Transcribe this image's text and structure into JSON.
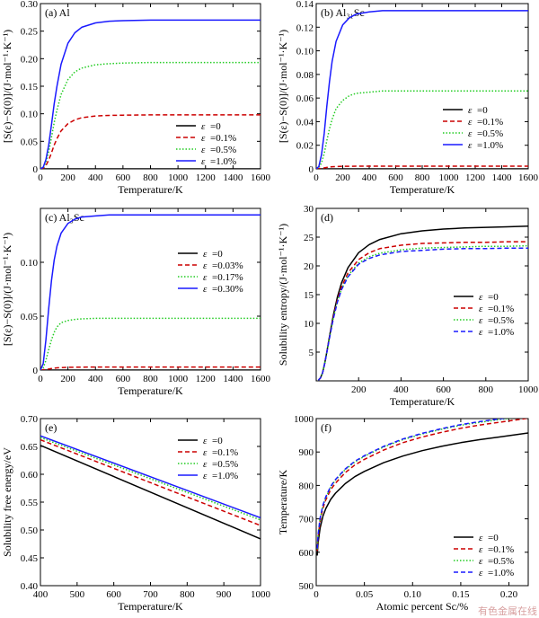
{
  "figure": {
    "watermark": "有色金属在线"
  },
  "legend_prefix": "ε",
  "chart_data": [
    {
      "id": "a",
      "type": "line",
      "panel_label": "(a) Al",
      "xlabel": "Temperature/K",
      "ylabel": "[S(ε)−S(0)]/(J·mol⁻¹·K⁻¹)",
      "xlim": [
        0,
        1600
      ],
      "ylim": [
        0,
        0.3
      ],
      "xticks": [
        0,
        200,
        400,
        600,
        800,
        1000,
        1200,
        1400,
        1600
      ],
      "yticks": [
        0,
        0.05,
        0.1,
        0.15,
        0.2,
        0.25,
        0.3
      ],
      "ytick_labels": [
        "0",
        "0.05",
        "0.10",
        "0.15",
        "0.20",
        "0.25",
        "0.30"
      ],
      "legend_position": "lower-right",
      "series": [
        {
          "name": "=0",
          "color": "#000000",
          "dash": "solid",
          "x": [
            0,
            1600
          ],
          "y": [
            0,
            0
          ]
        },
        {
          "name": "=0.1%",
          "color": "#cc0000",
          "dash": "dashed",
          "x": [
            0,
            20,
            40,
            60,
            80,
            100,
            120,
            150,
            200,
            250,
            300,
            400,
            500,
            600,
            800,
            1000,
            1200,
            1400,
            1600
          ],
          "y": [
            0,
            0.001,
            0.006,
            0.016,
            0.029,
            0.043,
            0.055,
            0.069,
            0.082,
            0.089,
            0.093,
            0.096,
            0.097,
            0.0975,
            0.098,
            0.098,
            0.098,
            0.098,
            0.098
          ]
        },
        {
          "name": "=0.5%",
          "color": "#22cc22",
          "dash": "dotted",
          "x": [
            0,
            20,
            40,
            60,
            80,
            100,
            120,
            150,
            200,
            250,
            300,
            400,
            500,
            600,
            800,
            1000,
            1200,
            1400,
            1600
          ],
          "y": [
            0,
            0.002,
            0.012,
            0.031,
            0.057,
            0.084,
            0.107,
            0.135,
            0.162,
            0.176,
            0.183,
            0.189,
            0.191,
            0.192,
            0.193,
            0.193,
            0.193,
            0.193,
            0.193
          ]
        },
        {
          "name": "=1.0%",
          "color": "#1a1aff",
          "dash": "solid",
          "x": [
            0,
            20,
            40,
            60,
            80,
            100,
            120,
            150,
            200,
            250,
            300,
            400,
            500,
            600,
            800,
            1000,
            1200,
            1400,
            1600
          ],
          "y": [
            0,
            0.003,
            0.017,
            0.043,
            0.08,
            0.118,
            0.15,
            0.19,
            0.228,
            0.247,
            0.257,
            0.265,
            0.268,
            0.269,
            0.27,
            0.27,
            0.27,
            0.27,
            0.27
          ]
        }
      ]
    },
    {
      "id": "b",
      "type": "line",
      "panel_label": "(b) Al₃₁Sc",
      "xlabel": "Temperature/K",
      "ylabel": "[S(ε)−S(0)]/(J·mol⁻¹·K⁻¹)",
      "xlim": [
        0,
        1600
      ],
      "ylim": [
        0,
        0.14
      ],
      "xticks": [
        0,
        200,
        400,
        600,
        800,
        1000,
        1200,
        1400,
        1600
      ],
      "yticks": [
        0,
        0.02,
        0.04,
        0.06,
        0.08,
        0.1,
        0.12,
        0.14
      ],
      "ytick_labels": [
        "0",
        "0.02",
        "0.04",
        "0.06",
        "0.08",
        "0.10",
        "0.12",
        "0.14"
      ],
      "legend_position": "lower-right",
      "series": [
        {
          "name": "=0",
          "color": "#000000",
          "dash": "solid",
          "x": [
            0,
            1600
          ],
          "y": [
            0,
            0
          ]
        },
        {
          "name": "=0.1%",
          "color": "#cc0000",
          "dash": "dashed",
          "x": [
            0,
            40,
            80,
            120,
            200,
            400,
            800,
            1600
          ],
          "y": [
            0,
            0.0004,
            0.0012,
            0.0018,
            0.0022,
            0.0023,
            0.0023,
            0.0023
          ]
        },
        {
          "name": "=0.5%",
          "color": "#22cc22",
          "dash": "dotted",
          "x": [
            0,
            20,
            40,
            60,
            80,
            100,
            120,
            150,
            200,
            250,
            300,
            400,
            500,
            600,
            800,
            1000,
            1200,
            1400,
            1600
          ],
          "y": [
            0,
            0.001,
            0.005,
            0.013,
            0.024,
            0.034,
            0.042,
            0.051,
            0.058,
            0.062,
            0.064,
            0.065,
            0.066,
            0.066,
            0.066,
            0.066,
            0.066,
            0.066,
            0.066
          ]
        },
        {
          "name": "=1.0%",
          "color": "#1a1aff",
          "dash": "solid",
          "x": [
            0,
            20,
            40,
            60,
            80,
            100,
            120,
            150,
            200,
            250,
            300,
            400,
            500,
            600,
            800,
            1000,
            1200,
            1400,
            1600
          ],
          "y": [
            0,
            0.002,
            0.012,
            0.03,
            0.053,
            0.074,
            0.091,
            0.108,
            0.122,
            0.128,
            0.131,
            0.133,
            0.134,
            0.134,
            0.134,
            0.134,
            0.134,
            0.134,
            0.134
          ]
        }
      ]
    },
    {
      "id": "c",
      "type": "line",
      "panel_label": "(c) Al₃Sc",
      "xlabel": "Temperature/K",
      "ylabel": "[S(ε)−S(0)]/(J·mol⁻¹·K⁻¹)",
      "xlim": [
        0,
        1600
      ],
      "ylim": [
        0,
        0.15
      ],
      "xticks": [
        0,
        200,
        400,
        600,
        800,
        1000,
        1200,
        1400,
        1600
      ],
      "yticks": [
        0,
        0.05,
        0.1
      ],
      "ytick_labels": [
        "0",
        "0.05",
        "0.10"
      ],
      "legend_position": "upper-right",
      "series": [
        {
          "name": "=0",
          "color": "#000000",
          "dash": "solid",
          "x": [
            0,
            1600
          ],
          "y": [
            0,
            0
          ]
        },
        {
          "name": "=0.03%",
          "color": "#cc0000",
          "dash": "dashed",
          "x": [
            0,
            40,
            80,
            120,
            200,
            400,
            800,
            1600
          ],
          "y": [
            0,
            0.0005,
            0.0014,
            0.0021,
            0.0026,
            0.0028,
            0.0028,
            0.0028
          ]
        },
        {
          "name": "=0.17%",
          "color": "#22cc22",
          "dash": "dotted",
          "x": [
            0,
            20,
            40,
            60,
            80,
            100,
            120,
            150,
            200,
            250,
            300,
            400,
            500,
            600,
            800,
            1000,
            1200,
            1400,
            1600
          ],
          "y": [
            0,
            0.002,
            0.009,
            0.019,
            0.028,
            0.035,
            0.04,
            0.044,
            0.046,
            0.047,
            0.0475,
            0.048,
            0.048,
            0.048,
            0.048,
            0.048,
            0.048,
            0.048,
            0.048
          ]
        },
        {
          "name": "=0.30%",
          "color": "#1a1aff",
          "dash": "solid",
          "x": [
            0,
            20,
            40,
            60,
            80,
            100,
            120,
            150,
            200,
            250,
            300,
            400,
            500,
            600,
            800,
            1000,
            1200,
            1400,
            1600
          ],
          "y": [
            0,
            0.006,
            0.028,
            0.057,
            0.083,
            0.102,
            0.115,
            0.127,
            0.136,
            0.14,
            0.142,
            0.143,
            0.144,
            0.144,
            0.144,
            0.144,
            0.144,
            0.144,
            0.144
          ]
        }
      ]
    },
    {
      "id": "d",
      "type": "line",
      "panel_label": "(d)",
      "xlabel": "Temperature/K",
      "ylabel": "Solubility entropy/(J·mol⁻¹·K⁻¹)",
      "xlim": [
        0,
        1000
      ],
      "ylim": [
        0,
        30
      ],
      "xticks": [
        200,
        400,
        600,
        800,
        1000
      ],
      "yticks": [
        5,
        10,
        15,
        20,
        25,
        30
      ],
      "ytick_labels": [
        "5",
        "10",
        "15",
        "20",
        "25",
        "30"
      ],
      "legend_position": "center-right",
      "series": [
        {
          "name": "=0",
          "color": "#000000",
          "dash": "solid",
          "x": [
            10,
            20,
            30,
            40,
            50,
            60,
            80,
            100,
            120,
            150,
            200,
            250,
            300,
            400,
            500,
            600,
            700,
            800,
            900,
            1000
          ],
          "y": [
            0.1,
            0.5,
            1.4,
            3.0,
            5.0,
            7.2,
            11.3,
            14.6,
            17.1,
            19.7,
            22.3,
            23.7,
            24.6,
            25.6,
            26.1,
            26.4,
            26.6,
            26.7,
            26.8,
            26.9
          ]
        },
        {
          "name": "=0.1%",
          "color": "#cc0000",
          "dash": "dashed",
          "x": [
            10,
            20,
            30,
            40,
            50,
            60,
            80,
            100,
            120,
            150,
            200,
            250,
            300,
            400,
            500,
            600,
            700,
            800,
            900,
            1000
          ],
          "y": [
            0.1,
            0.5,
            1.4,
            3.0,
            5.0,
            7.1,
            11.0,
            14.1,
            16.4,
            18.8,
            21.1,
            22.3,
            23.0,
            23.6,
            23.9,
            24.0,
            24.1,
            24.1,
            24.2,
            24.2
          ]
        },
        {
          "name": "=0.5%",
          "color": "#22cc22",
          "dash": "dotted",
          "x": [
            10,
            20,
            30,
            40,
            50,
            60,
            80,
            100,
            120,
            150,
            200,
            250,
            300,
            400,
            500,
            600,
            700,
            800,
            900,
            1000
          ],
          "y": [
            0.1,
            0.5,
            1.4,
            3.0,
            4.9,
            7.0,
            10.8,
            13.8,
            16.0,
            18.3,
            20.5,
            21.6,
            22.2,
            22.8,
            23.1,
            23.2,
            23.3,
            23.4,
            23.4,
            23.5
          ]
        },
        {
          "name": "=1.0%",
          "color": "#1a1aff",
          "dash": "dashed",
          "x": [
            10,
            20,
            30,
            40,
            50,
            60,
            80,
            100,
            120,
            150,
            200,
            250,
            300,
            400,
            500,
            600,
            700,
            800,
            900,
            1000
          ],
          "y": [
            0.1,
            0.5,
            1.4,
            3.0,
            4.9,
            7.0,
            10.7,
            13.7,
            15.9,
            18.1,
            20.3,
            21.3,
            21.9,
            22.5,
            22.7,
            22.9,
            23.0,
            23.0,
            23.1,
            23.1
          ]
        }
      ]
    },
    {
      "id": "e",
      "type": "line",
      "panel_label": "(e)",
      "xlabel": "Temperature/K",
      "ylabel": "Solubility free energy/eV",
      "xlim": [
        400,
        1000
      ],
      "ylim": [
        0.4,
        0.7
      ],
      "xticks": [
        400,
        500,
        600,
        700,
        800,
        900,
        1000
      ],
      "yticks": [
        0.4,
        0.45,
        0.5,
        0.55,
        0.6,
        0.65,
        0.7
      ],
      "ytick_labels": [
        "0.40",
        "0.45",
        "0.50",
        "0.55",
        "0.60",
        "0.65",
        "0.70"
      ],
      "legend_position": "upper-right",
      "series": [
        {
          "name": "=0",
          "color": "#000000",
          "dash": "solid",
          "x": [
            400,
            1000
          ],
          "y": [
            0.652,
            0.484
          ]
        },
        {
          "name": "=0.1%",
          "color": "#cc0000",
          "dash": "dashed",
          "x": [
            400,
            1000
          ],
          "y": [
            0.662,
            0.508
          ]
        },
        {
          "name": "=0.5%",
          "color": "#22cc22",
          "dash": "dotted",
          "x": [
            400,
            1000
          ],
          "y": [
            0.666,
            0.518
          ]
        },
        {
          "name": "=1.0%",
          "color": "#1a1aff",
          "dash": "solid",
          "x": [
            400,
            1000
          ],
          "y": [
            0.669,
            0.522
          ]
        }
      ]
    },
    {
      "id": "f",
      "type": "line",
      "panel_label": "(f)",
      "xlabel": "Atomic percent Sc/%",
      "ylabel": "Temperature/K",
      "xlim": [
        0,
        0.22
      ],
      "ylim": [
        500,
        1000
      ],
      "xticks": [
        0,
        0.05,
        0.1,
        0.15,
        0.2
      ],
      "xtick_labels": [
        "0",
        "0.05",
        "0.10",
        "0.15",
        "0.20"
      ],
      "yticks": [
        500,
        600,
        700,
        800,
        900,
        1000
      ],
      "legend_position": "lower-right",
      "series": [
        {
          "name": "=0",
          "color": "#000000",
          "dash": "solid",
          "x": [
            0.001,
            0.002,
            0.004,
            0.007,
            0.01,
            0.015,
            0.02,
            0.03,
            0.04,
            0.05,
            0.07,
            0.09,
            0.11,
            0.13,
            0.15,
            0.17,
            0.19,
            0.21,
            0.22
          ],
          "y": [
            590,
            628,
            672,
            708,
            731,
            758,
            777,
            805,
            826,
            842,
            868,
            888,
            904,
            917,
            928,
            937,
            945,
            953,
            957
          ]
        },
        {
          "name": "=0.1%",
          "color": "#cc0000",
          "dash": "dashed",
          "x": [
            0.001,
            0.002,
            0.004,
            0.007,
            0.01,
            0.015,
            0.02,
            0.03,
            0.04,
            0.05,
            0.07,
            0.09,
            0.11,
            0.13,
            0.15,
            0.17,
            0.19,
            0.21,
            0.22
          ],
          "y": [
            604,
            645,
            693,
            732,
            757,
            787,
            807,
            838,
            861,
            878,
            906,
            928,
            945,
            959,
            971,
            981,
            989,
            997,
            1001
          ]
        },
        {
          "name": "=0.5%",
          "color": "#22cc22",
          "dash": "dotted",
          "x": [
            0.001,
            0.002,
            0.004,
            0.007,
            0.01,
            0.015,
            0.02,
            0.03,
            0.04,
            0.05,
            0.07,
            0.09,
            0.11,
            0.13,
            0.15,
            0.17,
            0.19,
            0.21,
            0.22
          ],
          "y": [
            609,
            651,
            700,
            739,
            764,
            795,
            816,
            847,
            870,
            887,
            915,
            937,
            954,
            968,
            980,
            989,
            997,
            1004,
            1008
          ]
        },
        {
          "name": "=1.0%",
          "color": "#1a1aff",
          "dash": "dashed",
          "x": [
            0.001,
            0.002,
            0.004,
            0.007,
            0.01,
            0.015,
            0.02,
            0.03,
            0.04,
            0.05,
            0.07,
            0.09,
            0.11,
            0.13,
            0.15,
            0.17,
            0.19,
            0.21,
            0.22
          ],
          "y": [
            611,
            653,
            702,
            741,
            766,
            797,
            818,
            849,
            872,
            889,
            917,
            939,
            956,
            970,
            982,
            991,
            999,
            1006,
            1010
          ]
        }
      ]
    }
  ]
}
